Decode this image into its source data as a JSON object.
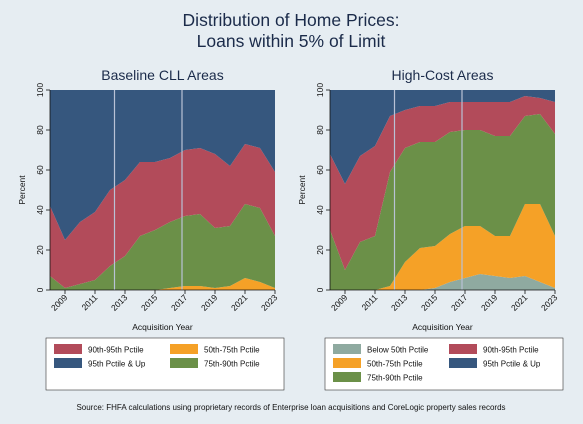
{
  "colors": {
    "background": "#e6edf2",
    "plot_bg": "#ffffff",
    "legend_bg": "#ffffff",
    "vline": "#b9c2d6",
    "series": {
      "Below 50th Pctile": "#8faaa0",
      "50th-75th Pctile": "#f5a127",
      "75th-90th Pctile": "#6b9048",
      "90th-95th Pctile": "#b24b5a",
      "95th Pctile & Up": "#36577e"
    }
  },
  "figure": {
    "title_line1": "Distribution of Home Prices:",
    "title_line2": "Loans within 5% of Limit",
    "source": "Source: FHFA calculations using proprietary records of Enterprise loan acquisitions and CoreLogic property sales records"
  },
  "chart_data": [
    {
      "type": "area",
      "stacked": true,
      "title": "Baseline CLL Areas",
      "xlabel": "Acquisition Year",
      "ylabel": "Percent",
      "xlim": [
        2008,
        2023
      ],
      "ylim": [
        0,
        100
      ],
      "xticks": [
        "2009",
        "2011",
        "2013",
        "2015",
        "2017",
        "2019",
        "2021",
        "2023"
      ],
      "yticks": [
        "0",
        "20",
        "40",
        "60",
        "80",
        "100"
      ],
      "vlines": [
        2012.3,
        2016.8
      ],
      "x": [
        2008,
        2009,
        2010,
        2011,
        2012,
        2013,
        2014,
        2015,
        2016,
        2017,
        2018,
        2019,
        2020,
        2021,
        2022,
        2023
      ],
      "series": [
        {
          "name": "Below 50th Pctile",
          "values": [
            0,
            0,
            0,
            0,
            0,
            0,
            0,
            0,
            0,
            0,
            0,
            0,
            0,
            0,
            0,
            0
          ]
        },
        {
          "name": "50th-75th Pctile",
          "values": [
            0,
            0,
            0,
            0,
            0,
            0,
            0,
            0,
            1,
            2,
            2,
            1,
            2,
            6,
            4,
            1
          ]
        },
        {
          "name": "75th-90th Pctile",
          "values": [
            7,
            1,
            3,
            5,
            12,
            17,
            27,
            30,
            33,
            35,
            36,
            30,
            30,
            37,
            37,
            26
          ]
        },
        {
          "name": "90th-95th Pctile",
          "values": [
            35,
            24,
            31,
            34,
            38,
            38,
            37,
            34,
            32,
            33,
            33,
            37,
            30,
            30,
            30,
            32
          ]
        },
        {
          "name": "95th Pctile & Up",
          "values": [
            58,
            75,
            66,
            61,
            50,
            45,
            36,
            36,
            34,
            30,
            29,
            32,
            38,
            27,
            29,
            41
          ]
        }
      ]
    },
    {
      "type": "area",
      "stacked": true,
      "title": "High-Cost Areas",
      "xlabel": "Acquisition Year",
      "ylabel": "Percent",
      "xlim": [
        2008,
        2023
      ],
      "ylim": [
        0,
        100
      ],
      "xticks": [
        "2009",
        "2011",
        "2013",
        "2015",
        "2017",
        "2019",
        "2021",
        "2023"
      ],
      "yticks": [
        "0",
        "20",
        "40",
        "60",
        "80",
        "100"
      ],
      "vlines": [
        2012.3,
        2016.8
      ],
      "x": [
        2008,
        2009,
        2010,
        2011,
        2012,
        2013,
        2014,
        2015,
        2016,
        2017,
        2018,
        2019,
        2020,
        2021,
        2022,
        2023
      ],
      "series": [
        {
          "name": "Below 50th Pctile",
          "values": [
            0,
            0,
            0,
            0,
            0,
            0,
            0,
            1,
            4,
            6,
            8,
            7,
            6,
            7,
            4,
            1
          ]
        },
        {
          "name": "50th-75th Pctile",
          "values": [
            0,
            0,
            0,
            0,
            2,
            14,
            21,
            21,
            24,
            26,
            24,
            20,
            21,
            36,
            39,
            26
          ]
        },
        {
          "name": "75th-90th Pctile",
          "values": [
            30,
            10,
            24,
            27,
            57,
            57,
            53,
            52,
            51,
            48,
            48,
            50,
            50,
            44,
            45,
            51
          ]
        },
        {
          "name": "90th-95th Pctile",
          "values": [
            38,
            43,
            43,
            45,
            28,
            19,
            18,
            18,
            15,
            14,
            14,
            17,
            17,
            10,
            8,
            16
          ]
        },
        {
          "name": "95th Pctile & Up",
          "values": [
            32,
            47,
            33,
            28,
            13,
            10,
            8,
            8,
            6,
            6,
            6,
            6,
            6,
            3,
            4,
            6
          ]
        }
      ]
    }
  ],
  "legend_order": [
    "Below 50th Pctile",
    "90th-95th Pctile",
    "50th-75th Pctile",
    "95th Pctile & Up",
    "75th-90th Pctile"
  ]
}
